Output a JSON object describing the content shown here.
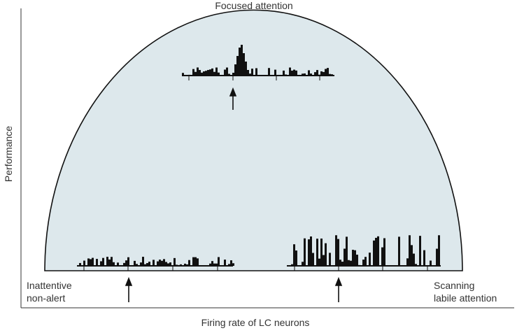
{
  "top_label": "Focused attention",
  "y_axis_label": "Performance",
  "x_axis_label": "Firing rate of LC neurons",
  "left_label": [
    "Inattentive",
    "non-alert"
  ],
  "right_label": [
    "Scanning",
    "labile attention"
  ]
}
